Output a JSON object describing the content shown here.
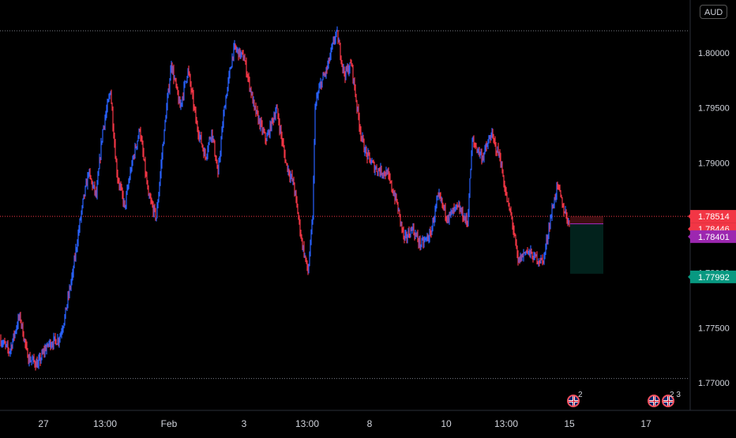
{
  "currency": "AUD",
  "chart_data": {
    "type": "line",
    "ylim": [
      1.7675,
      1.8048
    ],
    "y_ticks": [
      "1.80000",
      "1.79500",
      "1.79000",
      "1.78500",
      "1.78000",
      "1.77500",
      "1.77000"
    ],
    "y_tick_values": [
      1.8,
      1.795,
      1.79,
      1.785,
      1.78,
      1.775,
      1.77
    ],
    "x_ticks": [
      "27",
      "13:00",
      "Feb",
      "3",
      "13:00",
      "8",
      "10",
      "13:00",
      "15",
      "17"
    ],
    "price_path": [
      [
        0,
        1.774
      ],
      [
        12,
        1.7728
      ],
      [
        25,
        1.7762
      ],
      [
        35,
        1.7723
      ],
      [
        48,
        1.7717
      ],
      [
        60,
        1.7735
      ],
      [
        75,
        1.774
      ],
      [
        82,
        1.776
      ],
      [
        92,
        1.78
      ],
      [
        104,
        1.786
      ],
      [
        112,
        1.789
      ],
      [
        122,
        1.787
      ],
      [
        130,
        1.793
      ],
      [
        140,
        1.7965
      ],
      [
        148,
        1.789
      ],
      [
        158,
        1.786
      ],
      [
        167,
        1.79
      ],
      [
        177,
        1.793
      ],
      [
        188,
        1.787
      ],
      [
        198,
        1.785
      ],
      [
        208,
        1.793
      ],
      [
        217,
        1.799
      ],
      [
        228,
        1.795
      ],
      [
        238,
        1.7985
      ],
      [
        249,
        1.7935
      ],
      [
        260,
        1.7905
      ],
      [
        268,
        1.793
      ],
      [
        276,
        1.789
      ],
      [
        284,
        1.795
      ],
      [
        296,
        1.8005
      ],
      [
        309,
        1.7995
      ],
      [
        322,
        1.795
      ],
      [
        337,
        1.792
      ],
      [
        350,
        1.795
      ],
      [
        362,
        1.79
      ],
      [
        372,
        1.788
      ],
      [
        382,
        1.783
      ],
      [
        390,
        1.78
      ],
      [
        396,
        1.785
      ],
      [
        399,
        1.795
      ],
      [
        405,
        1.797
      ],
      [
        414,
        1.7985
      ],
      [
        426,
        1.802
      ],
      [
        436,
        1.798
      ],
      [
        445,
        1.799
      ],
      [
        456,
        1.793
      ],
      [
        462,
        1.791
      ],
      [
        475,
        1.7895
      ],
      [
        490,
        1.789
      ],
      [
        502,
        1.7865
      ],
      [
        512,
        1.783
      ],
      [
        522,
        1.784
      ],
      [
        533,
        1.7825
      ],
      [
        545,
        1.7835
      ],
      [
        555,
        1.787
      ],
      [
        567,
        1.785
      ],
      [
        580,
        1.786
      ],
      [
        592,
        1.7845
      ],
      [
        598,
        1.792
      ],
      [
        611,
        1.7905
      ],
      [
        622,
        1.7925
      ],
      [
        633,
        1.7905
      ],
      [
        642,
        1.7865
      ],
      [
        648,
        1.785
      ],
      [
        656,
        1.781
      ],
      [
        666,
        1.782
      ],
      [
        676,
        1.7815
      ],
      [
        688,
        1.781
      ],
      [
        697,
        1.785
      ],
      [
        706,
        1.788
      ],
      [
        713,
        1.786
      ],
      [
        721,
        1.7845
      ]
    ],
    "annotations": [
      {
        "label": "1.78514",
        "value": 1.78514,
        "color": "#f23645"
      },
      {
        "label": "1.78446",
        "value": 1.78446,
        "color": "#f23645"
      },
      {
        "label": "1.78401",
        "value": 1.78401,
        "color": "#9c27b0"
      },
      {
        "label": "1.77992",
        "value": 1.77992,
        "color": "#089981"
      }
    ],
    "dotted_levels": [
      1.802,
      1.7704
    ],
    "grid": false,
    "colors": {
      "up": "#2962ff",
      "down": "#f23645"
    }
  },
  "events": [
    {
      "count": "2"
    },
    {
      "count": "2 3"
    }
  ]
}
